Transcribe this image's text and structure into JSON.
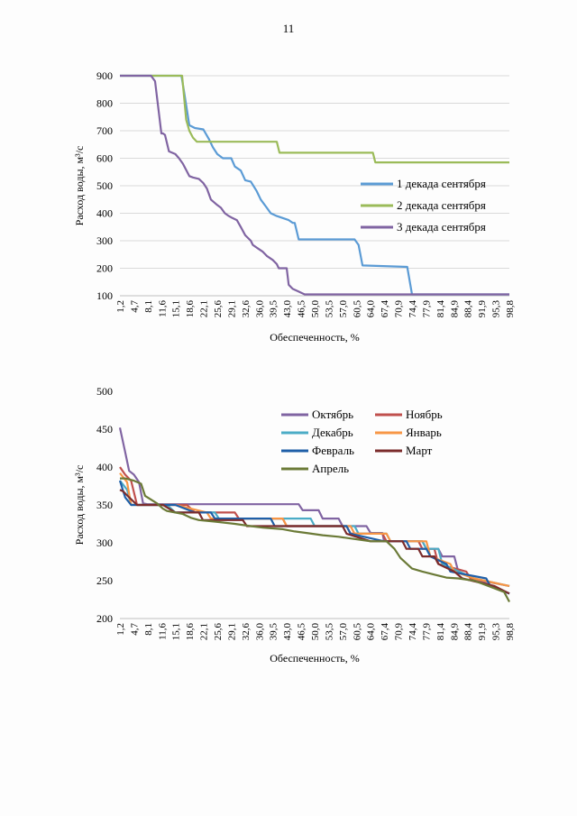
{
  "page": {
    "number": "11"
  },
  "chart_data": [
    {
      "type": "line",
      "title": "",
      "xlabel": "Обеспеченность, %",
      "ylabel": "Расход воды, м³/с",
      "ylim": [
        100,
        900
      ],
      "yticks": [
        "100",
        "200",
        "300",
        "400",
        "500",
        "600",
        "700",
        "800",
        "900"
      ],
      "xlim": [
        1.2,
        98.8
      ],
      "categories": [
        "1,2",
        "4,7",
        "8,1",
        "11,6",
        "15,1",
        "18,6",
        "22,1",
        "25,6",
        "29,1",
        "32,6",
        "36,0",
        "39,5",
        "43,0",
        "46,5",
        "50,0",
        "53,5",
        "57,0",
        "60,5",
        "64,0",
        "67,4",
        "70,9",
        "74,4",
        "77,9",
        "81,4",
        "84,9",
        "88,4",
        "91,9",
        "95,3",
        "98,8"
      ],
      "grid": true,
      "legend_position": "right",
      "series": [
        {
          "name": "1 декада сентября",
          "color": "#5b9bd5",
          "x": [
            1.2,
            16.6,
            17.2,
            18.6,
            20.0,
            22.1,
            23.5,
            24.5,
            25.6,
            27.0,
            29.1,
            30.0,
            31.5,
            32.6,
            34.0,
            35.5,
            36.5,
            38.0,
            39.0,
            40.5,
            41.5,
            43.5,
            44.5,
            45.0,
            46.0,
            60.0,
            61.0,
            62.0,
            73.2,
            74.4,
            98.8
          ],
          "y": [
            900,
            900,
            850,
            720,
            710,
            705,
            670,
            640,
            615,
            600,
            600,
            570,
            555,
            520,
            515,
            480,
            450,
            420,
            400,
            390,
            385,
            375,
            365,
            365,
            305,
            305,
            285,
            210,
            205,
            105,
            105
          ]
        },
        {
          "name": "2 декада сентября",
          "color": "#9bbb59",
          "x": [
            1.2,
            16.8,
            17.8,
            18.6,
            19.5,
            20.5,
            40.5,
            41.2,
            64.6,
            65.2,
            98.8
          ],
          "y": [
            900,
            900,
            740,
            700,
            675,
            660,
            660,
            620,
            620,
            585,
            585
          ]
        },
        {
          "name": "3 декада сентября",
          "color": "#8064a2",
          "x": [
            1.2,
            9.0,
            10.0,
            10.5,
            11.6,
            12.0,
            12.5,
            13.5,
            15.1,
            16.0,
            17.0,
            18.6,
            19.5,
            21.0,
            22.1,
            23.0,
            24.0,
            25.6,
            26.5,
            27.5,
            28.5,
            29.1,
            30.5,
            31.5,
            32.6,
            34.0,
            34.5,
            36.0,
            37.0,
            38.0,
            39.5,
            40.5,
            41.0,
            42.0,
            43.0,
            43.5,
            44.5,
            46.0,
            47.5,
            98.8
          ],
          "y": [
            900,
            900,
            880,
            820,
            690,
            690,
            685,
            625,
            615,
            600,
            580,
            535,
            530,
            525,
            510,
            490,
            450,
            430,
            420,
            400,
            390,
            385,
            375,
            350,
            320,
            300,
            285,
            270,
            260,
            245,
            230,
            215,
            200,
            200,
            200,
            140,
            125,
            115,
            105,
            105
          ]
        }
      ]
    },
    {
      "type": "line",
      "title": "",
      "xlabel": "Обеспеченность, %",
      "ylabel": "Расход воды, м³/с",
      "ylim": [
        200,
        500
      ],
      "yticks": [
        "200",
        "250",
        "300",
        "350",
        "400",
        "450",
        "500"
      ],
      "xlim": [
        1.2,
        98.8
      ],
      "categories": [
        "1,2",
        "4,7",
        "8,1",
        "11,6",
        "15,1",
        "18,6",
        "22,1",
        "25,6",
        "29,1",
        "32,6",
        "36,0",
        "39,5",
        "43,0",
        "46,5",
        "50,0",
        "53,5",
        "57,0",
        "60,5",
        "64,0",
        "67,4",
        "70,9",
        "74,4",
        "77,9",
        "81,4",
        "84,9",
        "88,4",
        "91,9",
        "95,3",
        "98,8"
      ],
      "grid": false,
      "legend_position": "top-right",
      "series": [
        {
          "name": "Октябрь",
          "color": "#8064a2",
          "x": [
            1.2,
            2.5,
            3.5,
            4.7,
            6.0,
            7.0,
            8.1,
            46.0,
            47.0,
            51.0,
            52.0,
            56.0,
            57.0,
            63.0,
            64.0,
            67.0,
            67.4,
            77.0,
            78.0,
            81.0,
            82.0,
            85.0,
            86.0,
            90.0,
            98.8
          ],
          "y": [
            452,
            420,
            395,
            390,
            380,
            352,
            351,
            351,
            343,
            343,
            332,
            332,
            322,
            322,
            313,
            313,
            302,
            302,
            292,
            292,
            282,
            282,
            262,
            253,
            233
          ]
        },
        {
          "name": "Ноябрь",
          "color": "#c0504d",
          "x": [
            1.2,
            2.5,
            4.0,
            5.5,
            8.1,
            18.0,
            20.0,
            25.0,
            26.0,
            30.0,
            31.0,
            42.0,
            43.0,
            58.0,
            59.0,
            67.0,
            68.0,
            76.0,
            77.0,
            80.0,
            81.0,
            88.0,
            89.0,
            98.8
          ],
          "y": [
            400,
            390,
            382,
            350,
            350,
            350,
            340,
            340,
            340,
            340,
            332,
            332,
            322,
            322,
            312,
            312,
            302,
            302,
            292,
            292,
            272,
            262,
            253,
            243
          ]
        },
        {
          "name": "Декабрь",
          "color": "#4bacc6",
          "x": [
            1.2,
            3.0,
            4.0,
            13.0,
            15.1,
            25.0,
            26.0,
            44.0,
            45.0,
            49.0,
            50.0,
            60.0,
            61.0,
            68.0,
            69.0,
            77.0,
            78.0,
            81.0,
            82.0,
            90.0,
            98.8
          ],
          "y": [
            382,
            370,
            350,
            350,
            340,
            340,
            332,
            332,
            332,
            332,
            322,
            322,
            312,
            312,
            302,
            302,
            292,
            292,
            272,
            253,
            243
          ]
        },
        {
          "name": "Январь",
          "color": "#f79646",
          "x": [
            1.2,
            3.0,
            4.0,
            14.0,
            15.1,
            23.0,
            24.0,
            42.0,
            43.0,
            59.0,
            60.0,
            68.0,
            69.0,
            78.0,
            79.0,
            84.0,
            85.0,
            90.0,
            98.8
          ],
          "y": [
            392,
            380,
            350,
            350,
            350,
            340,
            332,
            332,
            322,
            322,
            312,
            312,
            302,
            302,
            282,
            272,
            262,
            253,
            243
          ]
        },
        {
          "name": "Февраль",
          "color": "#1f5fa8",
          "x": [
            1.2,
            2.5,
            4.0,
            15.1,
            20.0,
            24.0,
            25.0,
            39.0,
            40.0,
            58.0,
            59.0,
            67.4,
            73.0,
            74.0,
            78.0,
            79.0,
            83.0,
            84.0,
            93.0,
            94.0,
            98.8
          ],
          "y": [
            382,
            360,
            350,
            350,
            340,
            340,
            332,
            332,
            322,
            322,
            312,
            302,
            302,
            292,
            292,
            282,
            272,
            262,
            253,
            243,
            233
          ]
        },
        {
          "name": "Март",
          "color": "#7b2c2c",
          "x": [
            1.2,
            2.0,
            3.5,
            5.5,
            12.0,
            15.1,
            21.0,
            22.0,
            32.0,
            33.0,
            57.0,
            58.0,
            64.0,
            65.0,
            72.0,
            73.0,
            76.0,
            77.0,
            80.0,
            81.0,
            85.0,
            87.0,
            95.0,
            98.8
          ],
          "y": [
            370,
            368,
            360,
            350,
            350,
            340,
            340,
            330,
            330,
            322,
            322,
            312,
            302,
            302,
            302,
            292,
            292,
            282,
            282,
            272,
            262,
            253,
            243,
            233
          ]
        },
        {
          "name": "Апрель",
          "color": "#6b7a37",
          "x": [
            1.2,
            2.5,
            4.7,
            6.5,
            7.5,
            9.0,
            10.5,
            12.0,
            13.0,
            17.0,
            19.0,
            21.0,
            25.0,
            30.0,
            34.0,
            37.0,
            42.0,
            45.0,
            48.0,
            52.0,
            56.0,
            60.0,
            64.0,
            68.0,
            70.0,
            71.5,
            74.4,
            77.0,
            80.0,
            83.0,
            86.0,
            90.0,
            94.0,
            96.0,
            97.5,
            98.8
          ],
          "y": [
            385,
            385,
            382,
            378,
            362,
            357,
            352,
            345,
            342,
            338,
            333,
            330,
            328,
            325,
            322,
            320,
            318,
            315,
            313,
            310,
            308,
            305,
            302,
            302,
            292,
            280,
            266,
            262,
            258,
            254,
            253,
            250,
            242,
            238,
            235,
            222
          ]
        }
      ]
    }
  ]
}
